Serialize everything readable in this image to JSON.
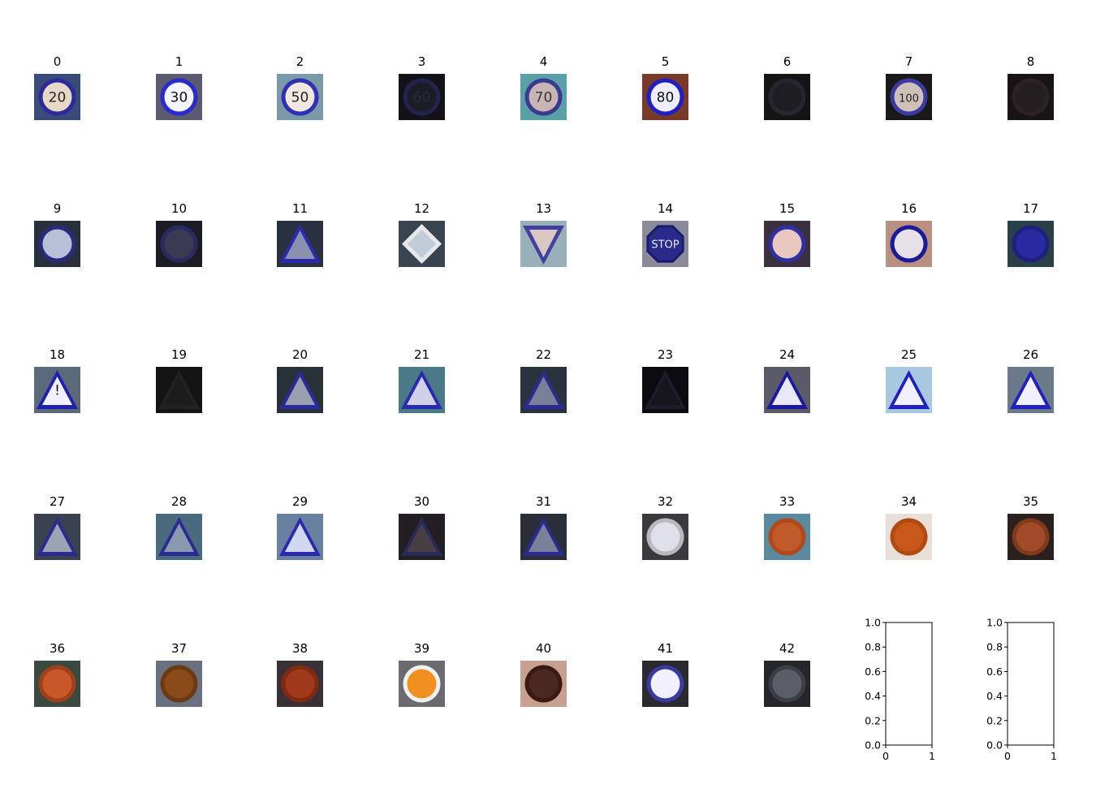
{
  "chart_data": {
    "type": "image_grid",
    "rows": 5,
    "cols": 9,
    "panels": [
      {
        "label": "0",
        "kind": "sign",
        "shape": "circle",
        "bg": "#3a4a7a",
        "face": "#e8d8c8",
        "rim": "#2b2b9a",
        "glyph": "20",
        "glyph_color": "#222222"
      },
      {
        "label": "1",
        "kind": "sign",
        "shape": "circle",
        "bg": "#5a5a70",
        "face": "#f4f4ff",
        "rim": "#2a2ad0",
        "glyph": "30",
        "glyph_color": "#111111"
      },
      {
        "label": "2",
        "kind": "sign",
        "shape": "circle",
        "bg": "#7a9aaa",
        "face": "#f0e8e0",
        "rim": "#3030b0",
        "glyph": "50",
        "glyph_color": "#222222"
      },
      {
        "label": "3",
        "kind": "sign",
        "shape": "circle",
        "bg": "#121218",
        "face": "#1c1c26",
        "rim": "#232350",
        "glyph": "60",
        "glyph_color": "#2a2a36"
      },
      {
        "label": "4",
        "kind": "sign",
        "shape": "circle",
        "bg": "#5aa0a8",
        "face": "#c8b4b4",
        "rim": "#3a3a90",
        "glyph": "70",
        "glyph_color": "#333333"
      },
      {
        "label": "5",
        "kind": "sign",
        "shape": "circle",
        "bg": "#7a3a2a",
        "face": "#eeeeff",
        "rim": "#2020c0",
        "glyph": "80",
        "glyph_color": "#111111"
      },
      {
        "label": "6",
        "kind": "sign",
        "shape": "circle",
        "bg": "#141416",
        "face": "#1e1e22",
        "rim": "#26262e",
        "glyph": "",
        "glyph_color": "#2a2a2a"
      },
      {
        "label": "7",
        "kind": "sign",
        "shape": "circle",
        "bg": "#1a1818",
        "face": "#cfc0b8",
        "rim": "#3a3aa0",
        "glyph": "100",
        "glyph_color": "#222222"
      },
      {
        "label": "8",
        "kind": "sign",
        "shape": "circle",
        "bg": "#181414",
        "face": "#241e1e",
        "rim": "#2c2226",
        "glyph": "",
        "glyph_color": "#3a2a2a"
      },
      {
        "label": "9",
        "kind": "sign",
        "shape": "circle",
        "bg": "#28303e",
        "face": "#b8c0d8",
        "rim": "#2a2a7a",
        "glyph": "",
        "glyph_color": "#333333"
      },
      {
        "label": "10",
        "kind": "sign",
        "shape": "circle",
        "bg": "#1c1c24",
        "face": "#3a3a52",
        "rim": "#2a2a60",
        "glyph": "",
        "glyph_color": "#222222"
      },
      {
        "label": "11",
        "kind": "sign",
        "shape": "triangle",
        "bg": "#2a3040",
        "face": "#8a90b0",
        "rim": "#2a2ab0",
        "glyph": "",
        "glyph_color": "#111111"
      },
      {
        "label": "12",
        "kind": "sign",
        "shape": "diamond",
        "bg": "#3a4450",
        "face": "#c0ccd8",
        "rim": "#3a4aa0",
        "glyph": "",
        "glyph_color": "#333333"
      },
      {
        "label": "13",
        "kind": "sign",
        "shape": "triangle-down",
        "bg": "#9ab0b8",
        "face": "#d8c8c0",
        "rim": "#4040a0",
        "glyph": "",
        "glyph_color": "#333333"
      },
      {
        "label": "14",
        "kind": "sign",
        "shape": "octagon",
        "bg": "#8a8a9a",
        "face": "#2a2a8a",
        "rim": "#1a1a6a",
        "glyph": "STOP",
        "glyph_color": "#e8e8ff"
      },
      {
        "label": "15",
        "kind": "sign",
        "shape": "circle",
        "bg": "#3a3040",
        "face": "#e8c8c0",
        "rim": "#3030a0",
        "glyph": "",
        "glyph_color": "#333333"
      },
      {
        "label": "16",
        "kind": "sign",
        "shape": "circle",
        "bg": "#b89080",
        "face": "#e8e0e8",
        "rim": "#1a1a9a",
        "glyph": "",
        "glyph_color": "#111111"
      },
      {
        "label": "17",
        "kind": "sign",
        "shape": "circle",
        "bg": "#2a4048",
        "face": "#2a2aa0",
        "rim": "#202080",
        "glyph": "",
        "glyph_color": "#ffffff"
      },
      {
        "label": "18",
        "kind": "sign",
        "shape": "triangle",
        "bg": "#5a6a7a",
        "face": "#f0f0ff",
        "rim": "#2020b0",
        "glyph": "!",
        "glyph_color": "#111111"
      },
      {
        "label": "19",
        "kind": "sign",
        "shape": "triangle",
        "bg": "#141414",
        "face": "#1c1c1c",
        "rim": "#222226",
        "glyph": "",
        "glyph_color": "#2a2a2a"
      },
      {
        "label": "20",
        "kind": "sign",
        "shape": "triangle",
        "bg": "#2a3038",
        "face": "#9aa0b0",
        "rim": "#2a2aa0",
        "glyph": "",
        "glyph_color": "#111111"
      },
      {
        "label": "21",
        "kind": "sign",
        "shape": "triangle",
        "bg": "#4a7a88",
        "face": "#d0d0e8",
        "rim": "#2a2ab0",
        "glyph": "",
        "glyph_color": "#111111"
      },
      {
        "label": "22",
        "kind": "sign",
        "shape": "triangle",
        "bg": "#2a3240",
        "face": "#7a8098",
        "rim": "#2a2a90",
        "glyph": "",
        "glyph_color": "#111111"
      },
      {
        "label": "23",
        "kind": "sign",
        "shape": "triangle",
        "bg": "#0c0c10",
        "face": "#16161c",
        "rim": "#1c1c2a",
        "glyph": "",
        "glyph_color": "#222222"
      },
      {
        "label": "24",
        "kind": "sign",
        "shape": "triangle",
        "bg": "#5a5a68",
        "face": "#e8e8f8",
        "rim": "#1a1aa0",
        "glyph": "",
        "glyph_color": "#111111"
      },
      {
        "label": "25",
        "kind": "sign",
        "shape": "triangle",
        "bg": "#a8c8e0",
        "face": "#f0f0ff",
        "rim": "#2020c0",
        "glyph": "",
        "glyph_color": "#111111"
      },
      {
        "label": "26",
        "kind": "sign",
        "shape": "triangle",
        "bg": "#6a7a88",
        "face": "#f0f0ff",
        "rim": "#2020c0",
        "glyph": "",
        "glyph_color": "#111111"
      },
      {
        "label": "27",
        "kind": "sign",
        "shape": "triangle",
        "bg": "#3a4252",
        "face": "#9aa4b4",
        "rim": "#2a2a90",
        "glyph": "",
        "glyph_color": "#111111"
      },
      {
        "label": "28",
        "kind": "sign",
        "shape": "triangle",
        "bg": "#4a6a80",
        "face": "#8a98b0",
        "rim": "#2a2a90",
        "glyph": "",
        "glyph_color": "#111111"
      },
      {
        "label": "29",
        "kind": "sign",
        "shape": "triangle",
        "bg": "#6a80a0",
        "face": "#d0d8f0",
        "rim": "#2a2ab0",
        "glyph": "",
        "glyph_color": "#111111"
      },
      {
        "label": "30",
        "kind": "sign",
        "shape": "triangle",
        "bg": "#221e24",
        "face": "#4a3e46",
        "rim": "#2a2a5a",
        "glyph": "",
        "glyph_color": "#111111"
      },
      {
        "label": "31",
        "kind": "sign",
        "shape": "triangle",
        "bg": "#2a2e38",
        "face": "#7a8098",
        "rim": "#2a2a90",
        "glyph": "",
        "glyph_color": "#111111"
      },
      {
        "label": "32",
        "kind": "sign",
        "shape": "circle",
        "bg": "#3a3a3e",
        "face": "#e0e0e8",
        "rim": "#b8b8c0",
        "glyph": "",
        "glyph_color": "#222222"
      },
      {
        "label": "33",
        "kind": "sign",
        "shape": "circle",
        "bg": "#5a8aa0",
        "face": "#c05a2a",
        "rim": "#b04a1a",
        "glyph": "",
        "glyph_color": "#ffffff"
      },
      {
        "label": "34",
        "kind": "sign",
        "shape": "circle",
        "bg": "#e8e0d8",
        "face": "#c8581a",
        "rim": "#b04a10",
        "glyph": "",
        "glyph_color": "#ffffff"
      },
      {
        "label": "35",
        "kind": "sign",
        "shape": "circle",
        "bg": "#2a2020",
        "face": "#a04a2a",
        "rim": "#803a1a",
        "glyph": "",
        "glyph_color": "#f0e8e8"
      },
      {
        "label": "36",
        "kind": "sign",
        "shape": "circle",
        "bg": "#3a4a40",
        "face": "#c8582a",
        "rim": "#a0401a",
        "glyph": "",
        "glyph_color": "#ffffff"
      },
      {
        "label": "37",
        "kind": "sign",
        "shape": "circle",
        "bg": "#6a7080",
        "face": "#8a4a1a",
        "rim": "#6a3a10",
        "glyph": "",
        "glyph_color": "#e8e0d8"
      },
      {
        "label": "38",
        "kind": "sign",
        "shape": "circle",
        "bg": "#3a3038",
        "face": "#a03a1a",
        "rim": "#802a10",
        "glyph": "",
        "glyph_color": "#f0e0e0"
      },
      {
        "label": "39",
        "kind": "sign",
        "shape": "circle",
        "bg": "#6a6a70",
        "face": "#f09020",
        "rim": "#f0f0f0",
        "glyph": "",
        "glyph_color": "#ffffff"
      },
      {
        "label": "40",
        "kind": "sign",
        "shape": "circle",
        "bg": "#c8a090",
        "face": "#4a2a20",
        "rim": "#3a1a10",
        "glyph": "",
        "glyph_color": "#c8a090"
      },
      {
        "label": "41",
        "kind": "sign",
        "shape": "circle",
        "bg": "#2a2a30",
        "face": "#f0f0ff",
        "rim": "#3a3aa0",
        "glyph": "",
        "glyph_color": "#222222"
      },
      {
        "label": "42",
        "kind": "sign",
        "shape": "circle",
        "bg": "#24262a",
        "face": "#5a5e66",
        "rim": "#3a3e46",
        "glyph": "",
        "glyph_color": "#a0a4aa"
      },
      {
        "label": "",
        "kind": "empty-axes",
        "xlim": [
          0,
          1
        ],
        "ylim": [
          0,
          1
        ],
        "xticks": [
          "0",
          "1"
        ],
        "yticks": [
          "0.0",
          "0.2",
          "0.4",
          "0.6",
          "0.8",
          "1.0"
        ]
      },
      {
        "label": "",
        "kind": "empty-axes",
        "xlim": [
          0,
          1
        ],
        "ylim": [
          0,
          1
        ],
        "xticks": [
          "0",
          "1"
        ],
        "yticks": [
          "0.0",
          "0.2",
          "0.4",
          "0.6",
          "0.8",
          "1.0"
        ]
      }
    ]
  }
}
